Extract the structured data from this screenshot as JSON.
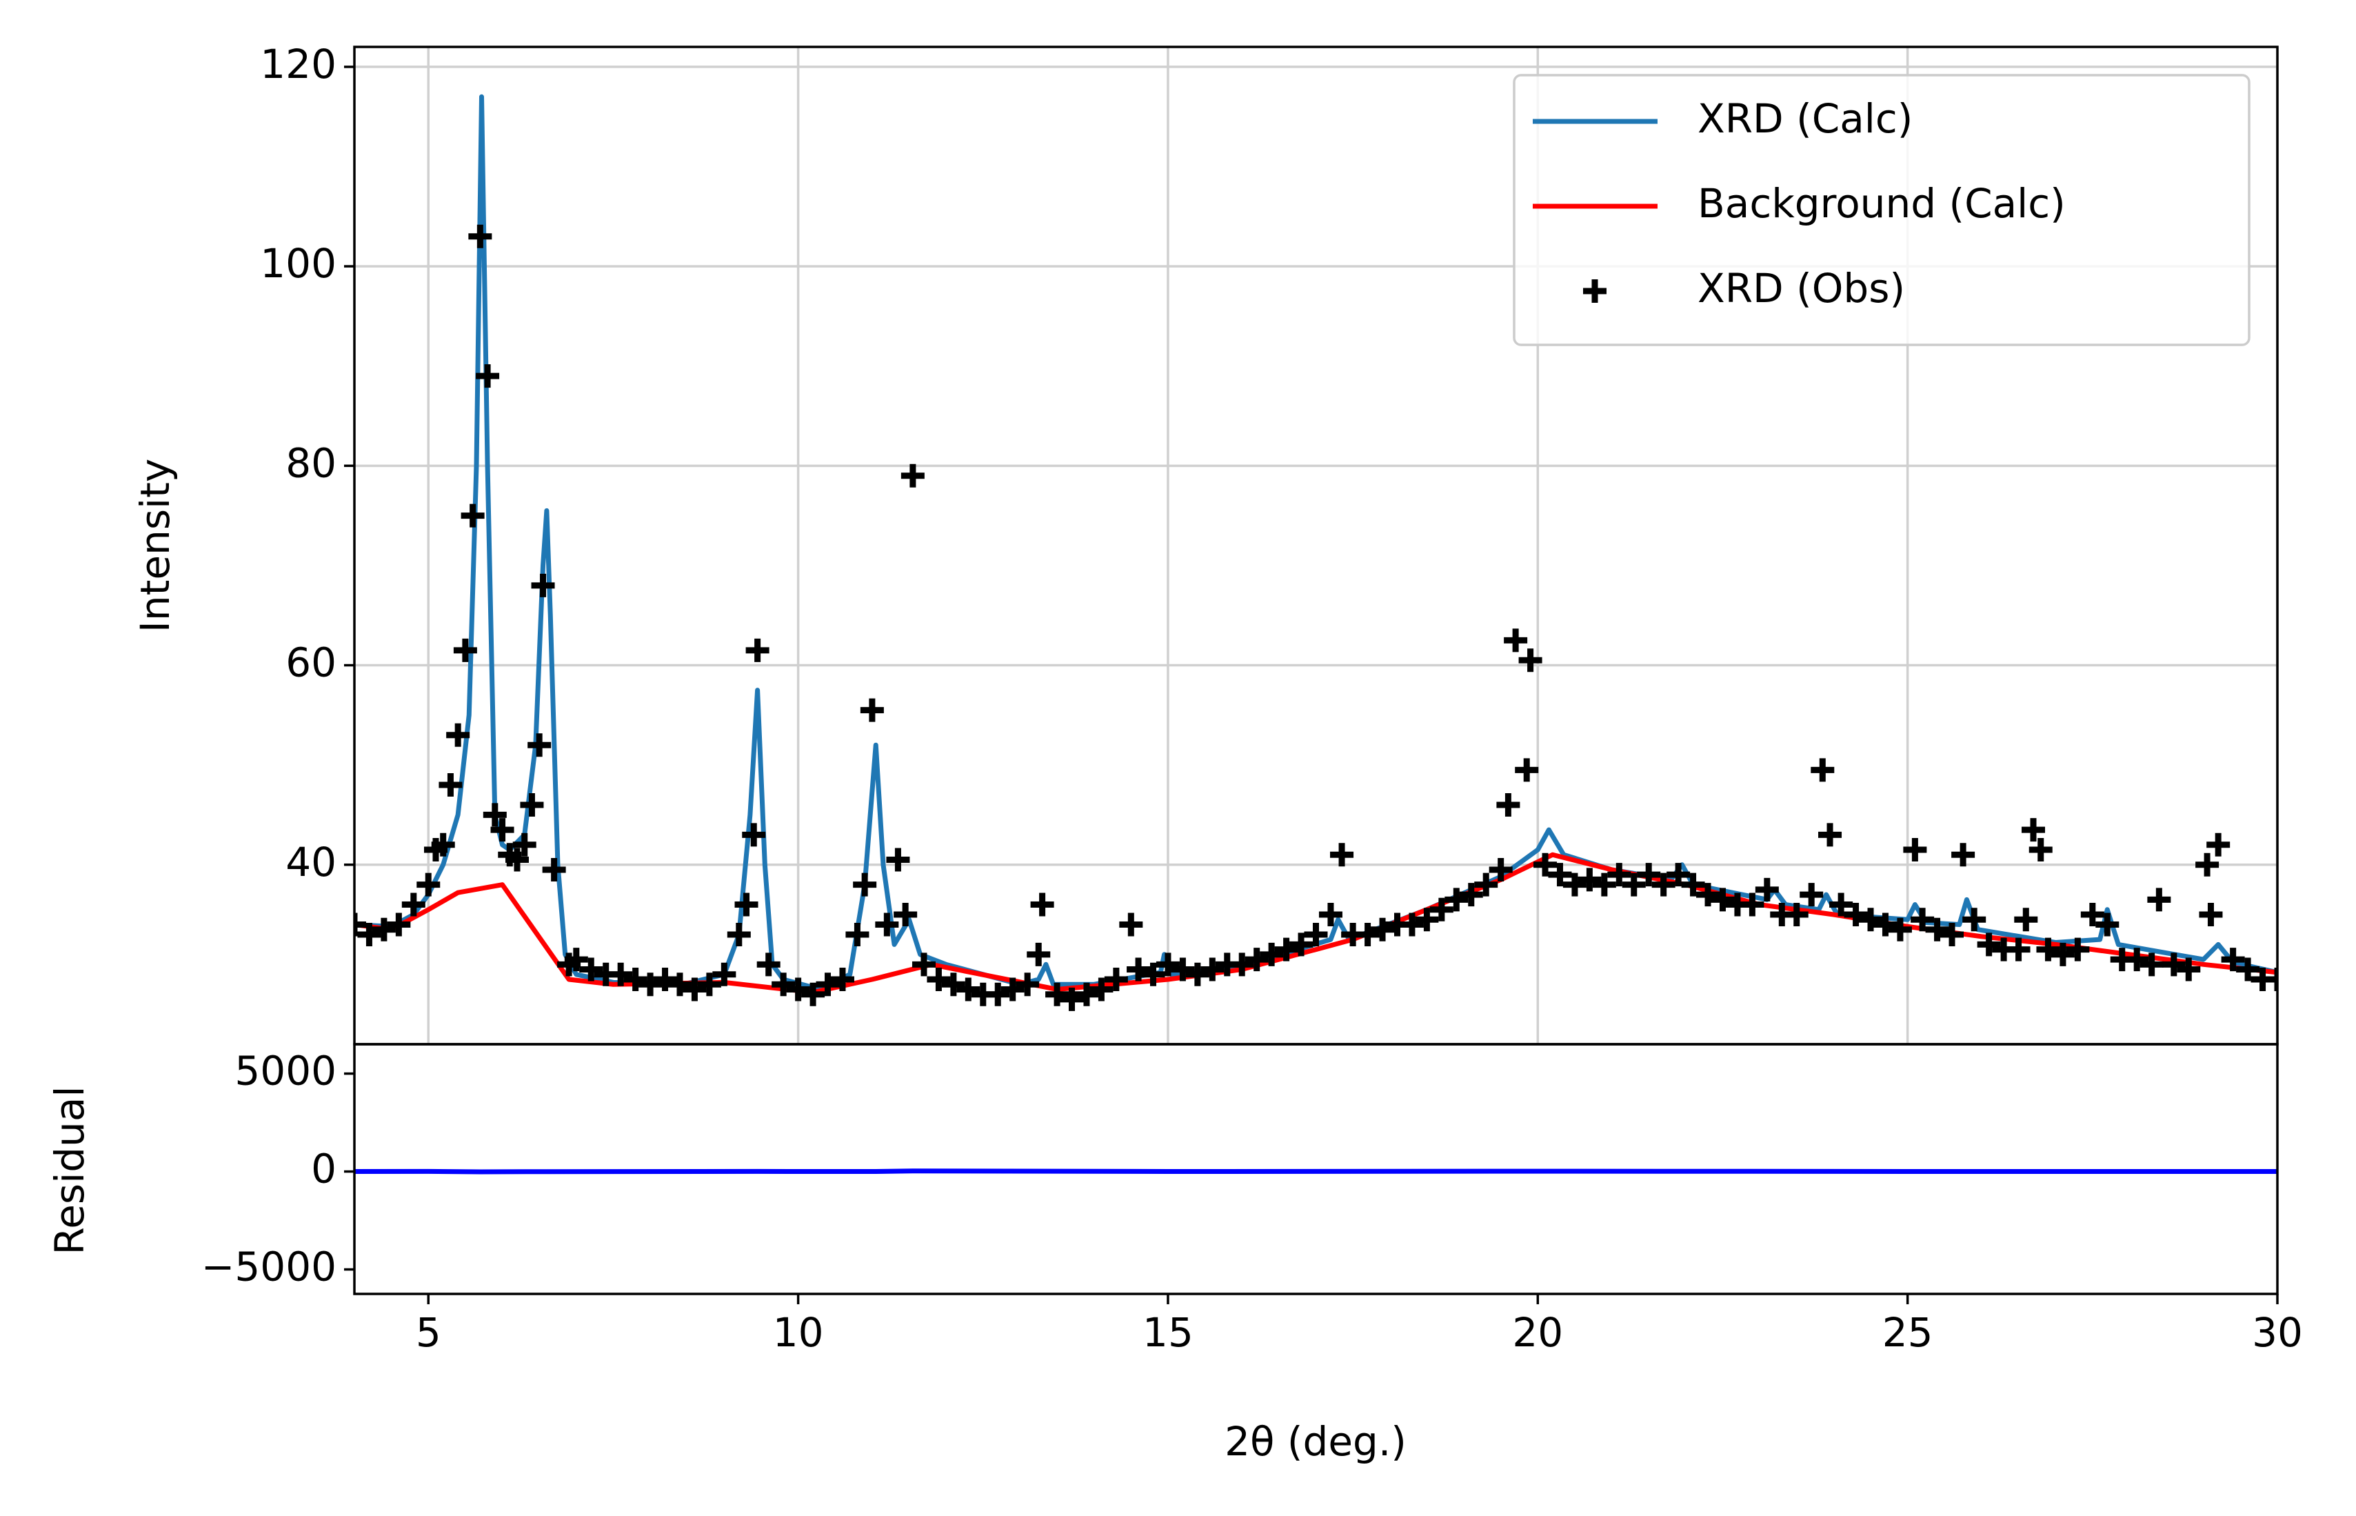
{
  "chart_data": [
    {
      "type": "line",
      "ylabel": "Intensity",
      "xlim": [
        4,
        30
      ],
      "ylim": [
        22,
        122
      ],
      "yticks": [
        40,
        60,
        80,
        100,
        120
      ],
      "grid": true,
      "legend": "upper right",
      "series": [
        {
          "name": "XRD (Calc)",
          "color": "#1f77b4",
          "type": "line",
          "x": [
            4,
            4.5,
            4.8,
            5.0,
            5.2,
            5.4,
            5.55,
            5.65,
            5.72,
            5.8,
            5.9,
            6.0,
            6.1,
            6.3,
            6.45,
            6.55,
            6.6,
            6.65,
            6.75,
            6.85,
            7,
            7.5,
            8.5,
            9.0,
            9.2,
            9.35,
            9.45,
            9.55,
            9.65,
            9.8,
            10.3,
            10.7,
            10.9,
            11.05,
            11.15,
            11.3,
            11.5,
            11.65,
            12,
            13,
            13.25,
            13.35,
            13.45,
            14,
            14.9,
            14.95,
            15.05,
            16,
            17.2,
            17.3,
            17.45,
            18.5,
            19.5,
            20.0,
            20.15,
            20.35,
            21,
            21.8,
            21.95,
            22.1,
            23.1,
            23.2,
            23.35,
            23.8,
            23.9,
            24.05,
            25,
            25.1,
            25.25,
            25.7,
            25.8,
            25.95,
            27,
            27.6,
            27.7,
            27.85,
            29,
            29.2,
            29.4,
            30
          ],
          "values": [
            34,
            33.8,
            35,
            37,
            40,
            45,
            55,
            80,
            117,
            80,
            45,
            42,
            41.5,
            43,
            52,
            70,
            75.5,
            65,
            40,
            31,
            29,
            28.2,
            28.1,
            29,
            33,
            45,
            57.5,
            40,
            30,
            28.5,
            27.5,
            29,
            38,
            52,
            40,
            32,
            34.5,
            31,
            30,
            28,
            28.5,
            30,
            28,
            28,
            29.2,
            31,
            29,
            29.8,
            32.5,
            34.5,
            32.5,
            35.5,
            38.8,
            41.5,
            43.5,
            41,
            39.5,
            38.5,
            40,
            38,
            36.5,
            37.5,
            36,
            35.5,
            37,
            35,
            34.5,
            36,
            34.2,
            34,
            36.5,
            33.5,
            32.2,
            32.5,
            35.5,
            32,
            30.5,
            32,
            30.2,
            29.2
          ]
        },
        {
          "name": "Background (Calc)",
          "color": "#ff0000",
          "type": "line",
          "x": [
            4,
            4.5,
            5,
            5.4,
            6,
            6.9,
            7.5,
            9,
            10.2,
            11,
            11.8,
            13.5,
            15,
            16,
            17.5,
            18.5,
            19.5,
            20.2,
            21,
            22,
            23,
            24,
            25,
            26,
            27,
            28,
            29,
            30
          ],
          "values": [
            34,
            33.5,
            35.5,
            37.2,
            38,
            28.5,
            28,
            28.2,
            27.2,
            28.5,
            30,
            27.5,
            28.5,
            29.5,
            32.5,
            35.5,
            38.5,
            41,
            39.5,
            38,
            36,
            35,
            33.8,
            32.8,
            32,
            31,
            30,
            29.2
          ]
        },
        {
          "name": "XRD (Obs)",
          "color": "#000000",
          "type": "scatter",
          "x": [
            4.0,
            4.2,
            4.4,
            4.6,
            4.8,
            5.0,
            5.1,
            5.9,
            6.0,
            6.1,
            6.2,
            6.3,
            6.7,
            6.9,
            7.0,
            7.2,
            7.4,
            7.6,
            7.8,
            8.0,
            8.2,
            8.4,
            8.6,
            8.8,
            9.0,
            9.2,
            9.3,
            9.6,
            9.8,
            10.0,
            10.2,
            10.4,
            10.6,
            10.8,
            10.9,
            11.2,
            11.45,
            11.7,
            11.9,
            12.1,
            12.3,
            12.5,
            12.7,
            12.9,
            13.1,
            13.25,
            13.5,
            13.7,
            13.9,
            14.1,
            14.3,
            14.6,
            14.8,
            15.0,
            15.2,
            15.4,
            15.6,
            15.8,
            16.0,
            16.2,
            16.4,
            16.6,
            16.8,
            17.0,
            17.2,
            17.5,
            17.7,
            17.9,
            18.1,
            18.3,
            18.5,
            18.7,
            18.9,
            19.1,
            19.3,
            19.5,
            20.1,
            20.3,
            20.5,
            20.7,
            20.9,
            21.1,
            21.3,
            21.5,
            21.7,
            21.9,
            22.1,
            22.3,
            22.5,
            22.7,
            22.9,
            23.1,
            23.3,
            23.5,
            23.7,
            24.1,
            24.3,
            24.5,
            24.7,
            24.9,
            25.2,
            25.4,
            25.6,
            25.9,
            26.1,
            26.3,
            26.5,
            26.9,
            27.1,
            27.3,
            27.7,
            27.9,
            28.1,
            28.3,
            28.6,
            28.8,
            29.4,
            29.6,
            29.8,
            30.0,
            5.7,
            5.8,
            5.6,
            5.5,
            5.4,
            5.3,
            5.2,
            6.55,
            6.5,
            6.4,
            9.45,
            9.4,
            11.0,
            11.35,
            11.55,
            13.3,
            14.5,
            17.35,
            19.7,
            19.9,
            19.85,
            19.6,
            23.85,
            23.95,
            25.1,
            25.75,
            26.7,
            26.8,
            28.4,
            29.1,
            29.2,
            29.05,
            27.5,
            26.6
          ],
          "values": [
            34,
            33,
            33.5,
            34,
            36,
            38,
            41.5,
            45,
            43.5,
            41,
            40.5,
            42,
            39.5,
            30,
            30.5,
            29.5,
            29,
            29,
            28.5,
            28,
            28.5,
            28,
            27.5,
            28,
            29,
            33,
            36,
            30,
            28,
            27.5,
            27,
            28,
            28.5,
            33,
            38,
            34,
            35,
            30,
            28.5,
            28,
            27.5,
            27,
            27,
            27.5,
            28,
            31,
            27,
            26.5,
            27,
            27.5,
            28.5,
            29.5,
            29,
            30,
            29.5,
            29,
            29.5,
            30,
            30,
            30.5,
            31,
            31.5,
            32,
            33,
            35,
            33,
            33,
            33.5,
            34,
            34,
            34.5,
            35.5,
            36.5,
            37,
            38,
            39.5,
            40,
            39,
            38,
            38.5,
            38,
            39,
            38,
            39,
            38,
            39,
            38,
            37,
            36.5,
            36,
            36,
            37.5,
            35,
            35,
            37,
            36,
            35,
            34.5,
            34,
            33.5,
            34.5,
            33.5,
            33,
            34.5,
            32,
            31.5,
            31.5,
            31.5,
            31,
            31.5,
            34,
            30.5,
            30.5,
            30,
            30,
            29.5,
            30.5,
            29.5,
            28.5,
            28.5,
            103,
            89,
            75,
            61.5,
            53,
            48,
            42,
            68,
            52,
            46,
            61.5,
            43,
            55.5,
            40.5,
            79,
            36,
            34,
            41,
            62.5,
            60.5,
            49.5,
            46,
            49.5,
            43,
            41.5,
            41,
            43.5,
            41.5,
            36.5,
            35,
            42,
            40,
            35,
            34.5
          ]
        }
      ]
    },
    {
      "type": "line",
      "xlabel": "2θ (deg.)",
      "ylabel": "Residual",
      "xlim": [
        4,
        30
      ],
      "ylim": [
        -6250,
        6500
      ],
      "xticks": [
        5,
        10,
        15,
        20,
        25,
        30
      ],
      "yticks": [
        {
          "value": -5000,
          "label": "−5000"
        },
        0,
        5000
      ],
      "grid": false,
      "series": [
        {
          "color": "#0000ff",
          "type": "line",
          "x": [
            4,
            5,
            5.7,
            6.6,
            9.45,
            11.05,
            11.55,
            15,
            20,
            25,
            30
          ],
          "values": [
            0,
            5,
            -14,
            -7,
            4,
            3,
            27,
            1,
            17,
            3,
            0
          ]
        }
      ]
    }
  ]
}
